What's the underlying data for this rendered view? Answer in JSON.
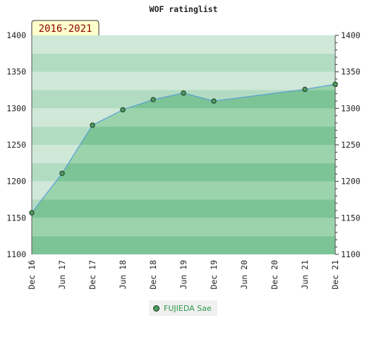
{
  "chart_data": {
    "type": "area",
    "title": "WOF ratinglist",
    "period_label": "2016-2021",
    "ylim": [
      1100,
      1400
    ],
    "yticks": [
      1100,
      1150,
      1200,
      1250,
      1300,
      1350,
      1400
    ],
    "xlim": [
      "2016-12",
      "2021-12"
    ],
    "xticks": [
      "Dec 16",
      "Jun 17",
      "Dec 17",
      "Jun 18",
      "Dec 18",
      "Jun 19",
      "Dec 19",
      "Jun 20",
      "Dec 20",
      "Jun 21",
      "Dec 21"
    ],
    "grid": true,
    "legend_position": "bottom-center",
    "colors": {
      "line": "#5a9fd4",
      "marker": "#4c9a62",
      "marker_stroke": "#1d3a22",
      "band_dark": "#b2dcc2",
      "band_light": "#cfe8d8",
      "fill_dark": "#7cc495",
      "fill_light": "#9bd3ad",
      "badge_bg": "#ffffcc",
      "badge_text": "#8b0000",
      "legend_text": "#2e9a4a"
    },
    "series": [
      {
        "name": "FUJIEDA Sae",
        "x": [
          "2016-12",
          "2017-06",
          "2017-12",
          "2018-06",
          "2018-12",
          "2019-06",
          "2019-12",
          "2021-06",
          "2021-12"
        ],
        "values": [
          1157,
          1211,
          1277,
          1298,
          1312,
          1321,
          1310,
          1326,
          1333
        ]
      }
    ]
  }
}
